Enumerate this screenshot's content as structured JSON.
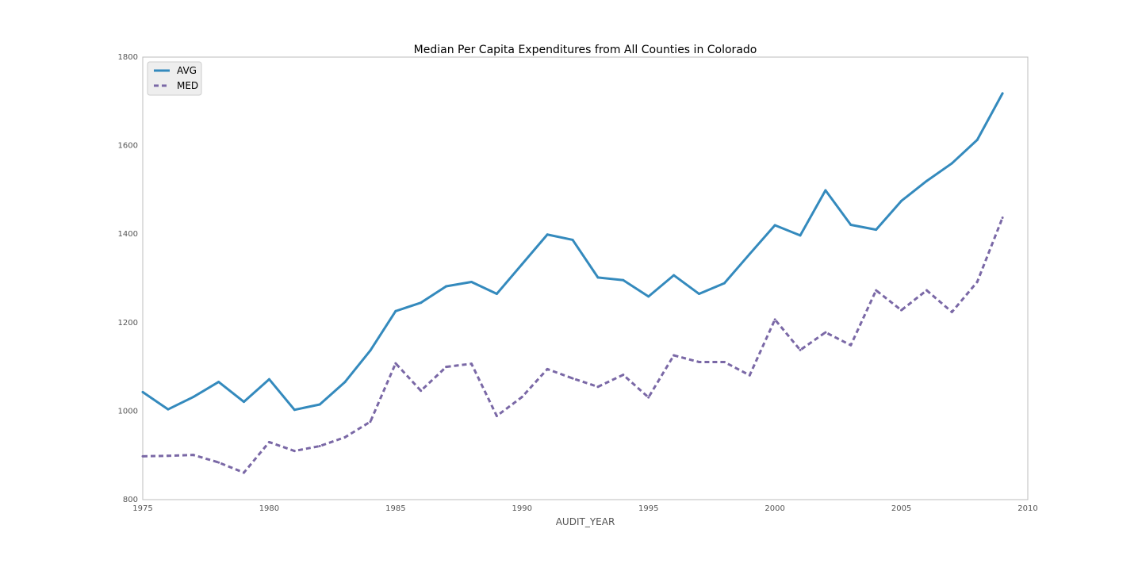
{
  "chart_data": {
    "type": "line",
    "title": "Median Per Capita Expenditures from All Counties in Colorado",
    "xlabel": "AUDIT_YEAR",
    "ylabel": "",
    "xlim": [
      1975,
      2010
    ],
    "ylim": [
      800,
      1800
    ],
    "xticks": [
      1975,
      1980,
      1985,
      1990,
      1995,
      2000,
      2005,
      2010
    ],
    "yticks": [
      800,
      1000,
      1200,
      1400,
      1600,
      1800
    ],
    "grid": false,
    "legend_position": "top-left",
    "x": [
      1975,
      1976,
      1977,
      1978,
      1979,
      1980,
      1981,
      1982,
      1983,
      1984,
      1985,
      1986,
      1987,
      1988,
      1989,
      1990,
      1991,
      1992,
      1993,
      1994,
      1995,
      1996,
      1997,
      1998,
      1999,
      2000,
      2001,
      2002,
      2003,
      2004,
      2005,
      2006,
      2007,
      2008,
      2009
    ],
    "series": [
      {
        "name": "AVG",
        "color": "#348abd",
        "style": "solid",
        "values": [
          1043,
          1004,
          1032,
          1066,
          1021,
          1072,
          1003,
          1015,
          1066,
          1137,
          1226,
          1245,
          1282,
          1292,
          1265,
          1332,
          1399,
          1387,
          1302,
          1296,
          1259,
          1307,
          1265,
          1289,
          1355,
          1420,
          1397,
          1499,
          1421,
          1410,
          1475,
          1520,
          1560,
          1613,
          1718
        ]
      },
      {
        "name": "MED",
        "color": "#7a68a6",
        "style": "dashed",
        "values": [
          898,
          899,
          901,
          884,
          861,
          930,
          910,
          921,
          941,
          976,
          1108,
          1046,
          1100,
          1107,
          989,
          1032,
          1095,
          1074,
          1055,
          1082,
          1031,
          1126,
          1111,
          1111,
          1081,
          1207,
          1138,
          1178,
          1149,
          1273,
          1228,
          1273,
          1224,
          1292,
          1437
        ]
      }
    ]
  }
}
